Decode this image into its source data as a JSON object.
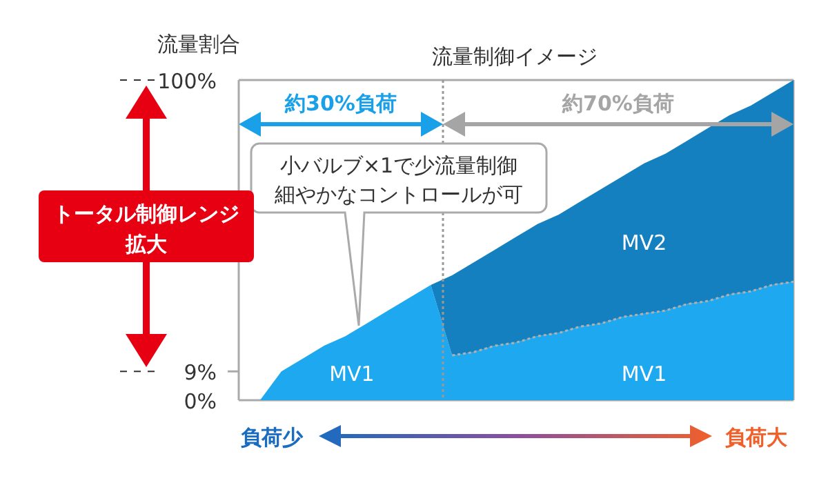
{
  "chart_data": {
    "type": "area",
    "stacked": true,
    "title": "流量制御イメージ",
    "ylabel": "流量割合",
    "categories": [
      null,
      null,
      null,
      null,
      null,
      null,
      null,
      null,
      null,
      null,
      null,
      null,
      null,
      null,
      null,
      null,
      null,
      null,
      null,
      null,
      null,
      null,
      null,
      null,
      null,
      null,
      null
    ],
    "ylim": [
      0,
      100
    ],
    "yticks": [
      {
        "value": 0,
        "label": "0%"
      },
      {
        "value": 9,
        "label": "9%"
      },
      {
        "value": 100,
        "label": "100%"
      }
    ],
    "tick_labels": "y",
    "legend": false,
    "grid": false,
    "series": [
      {
        "name": "MV1",
        "color": "#1ea8f0",
        "values": [
          0,
          0,
          9,
          13,
          17,
          20,
          24,
          28,
          32,
          36,
          14,
          15,
          17,
          18,
          20,
          21,
          23,
          24,
          26,
          27,
          28,
          30,
          31,
          33,
          34,
          36,
          37
        ]
      },
      {
        "name": "MV2",
        "color": "#1580c0",
        "values": [
          0,
          0,
          0,
          0,
          0,
          0,
          0,
          0,
          0,
          0,
          25,
          28,
          30,
          33,
          35,
          37,
          39,
          42,
          44,
          47,
          49,
          51,
          54,
          56,
          58,
          60,
          63
        ]
      }
    ],
    "annotations": [
      "約30%負荷",
      "約70%負荷",
      "MV1",
      "小バルブ×1で少流量制御細やかなコントロールが可",
      "トータル制御レンジ拡大",
      "負荷少",
      "負荷大"
    ]
  }
}
